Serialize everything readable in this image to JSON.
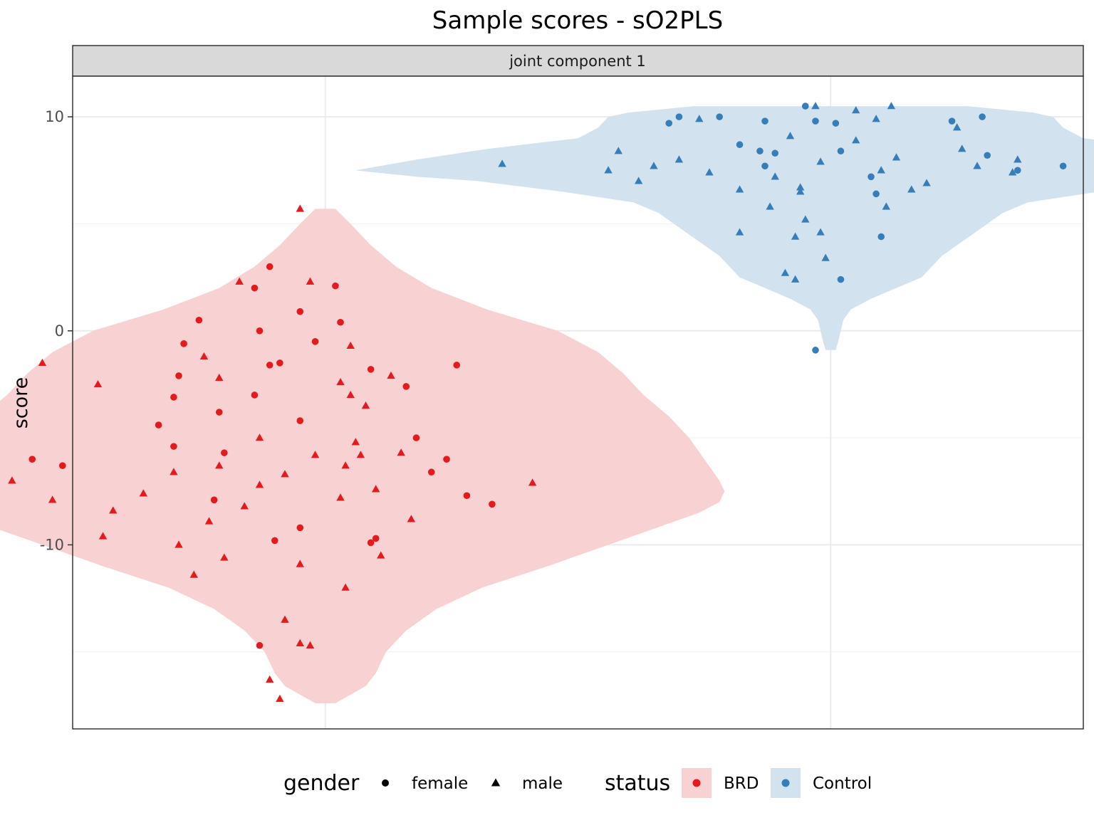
{
  "chart_data": {
    "type": "scatter",
    "title": "Sample scores - sO2PLS",
    "facet_label": "joint component 1",
    "ylabel": "score",
    "xlabel": "",
    "ylim": [
      -18.6,
      11.9
    ],
    "y_ticks": [
      {
        "value": 10,
        "label": "10"
      },
      {
        "value": 0,
        "label": "0"
      },
      {
        "value": -10,
        "label": "-10"
      }
    ],
    "minor_grid_y": [
      5,
      -5,
      -15
    ],
    "grid": true,
    "legend_position": "bottom",
    "legend": {
      "gender": {
        "title": "gender",
        "items": [
          {
            "key": "female",
            "label": "female",
            "shape": "circle"
          },
          {
            "key": "male",
            "label": "male",
            "shape": "triangle"
          }
        ]
      },
      "status": {
        "title": "status",
        "items": [
          {
            "key": "BRD",
            "label": "BRD",
            "color": "#E41A1C",
            "fill": "#F8D1D2"
          },
          {
            "key": "Control",
            "label": "Control",
            "color": "#377EB8",
            "fill": "#D3E2EF"
          }
        ]
      }
    },
    "groups": [
      {
        "status": "BRD",
        "color": "#E41A1C",
        "fill": "#F8D1D2",
        "violin": [
          [
            5.7,
            0.2
          ],
          [
            5.0,
            0.5
          ],
          [
            4.0,
            0.9
          ],
          [
            3.0,
            1.4
          ],
          [
            2.0,
            2.1
          ],
          [
            1.0,
            3.2
          ],
          [
            0.0,
            4.6
          ],
          [
            -1.0,
            5.4
          ],
          [
            -2.0,
            5.9
          ],
          [
            -3.0,
            6.3
          ],
          [
            -4.0,
            6.8
          ],
          [
            -5.0,
            7.2
          ],
          [
            -6.0,
            7.5
          ],
          [
            -7.0,
            7.8
          ],
          [
            -7.5,
            7.9
          ],
          [
            -8.0,
            7.8
          ],
          [
            -8.5,
            7.4
          ],
          [
            -9.0,
            6.8
          ],
          [
            -10.0,
            5.6
          ],
          [
            -11.0,
            4.4
          ],
          [
            -12.0,
            3.1
          ],
          [
            -13.0,
            2.2
          ],
          [
            -14.0,
            1.6
          ],
          [
            -15.0,
            1.2
          ],
          [
            -16.0,
            1.0
          ],
          [
            -16.6,
            0.8
          ],
          [
            -17.0,
            0.5
          ],
          [
            -17.4,
            0.2
          ]
        ],
        "points": [
          {
            "x": -0.05,
            "y": 5.7,
            "gender": "male"
          },
          {
            "x": -0.11,
            "y": 3.0,
            "gender": "female"
          },
          {
            "x": -0.17,
            "y": 2.3,
            "gender": "male"
          },
          {
            "x": -0.03,
            "y": 2.3,
            "gender": "male"
          },
          {
            "x": -0.14,
            "y": 2.0,
            "gender": "female"
          },
          {
            "x": 0.02,
            "y": 2.1,
            "gender": "female"
          },
          {
            "x": -0.05,
            "y": 0.9,
            "gender": "female"
          },
          {
            "x": -0.25,
            "y": 0.5,
            "gender": "female"
          },
          {
            "x": 0.03,
            "y": 0.4,
            "gender": "female"
          },
          {
            "x": -0.13,
            "y": 0.0,
            "gender": "female"
          },
          {
            "x": -0.28,
            "y": -0.6,
            "gender": "female"
          },
          {
            "x": -0.02,
            "y": -0.5,
            "gender": "female"
          },
          {
            "x": 0.05,
            "y": -0.7,
            "gender": "male"
          },
          {
            "x": -0.24,
            "y": -1.2,
            "gender": "male"
          },
          {
            "x": -0.11,
            "y": -1.6,
            "gender": "female"
          },
          {
            "x": -0.09,
            "y": -1.5,
            "gender": "female"
          },
          {
            "x": 0.09,
            "y": -1.8,
            "gender": "female"
          },
          {
            "x": 0.13,
            "y": -2.1,
            "gender": "male"
          },
          {
            "x": -0.56,
            "y": -1.5,
            "gender": "male"
          },
          {
            "x": 0.26,
            "y": -1.6,
            "gender": "female"
          },
          {
            "x": -0.29,
            "y": -2.1,
            "gender": "female"
          },
          {
            "x": -0.21,
            "y": -2.2,
            "gender": "male"
          },
          {
            "x": 0.03,
            "y": -2.4,
            "gender": "male"
          },
          {
            "x": 0.16,
            "y": -2.6,
            "gender": "female"
          },
          {
            "x": -0.45,
            "y": -2.5,
            "gender": "male"
          },
          {
            "x": -0.3,
            "y": -3.1,
            "gender": "female"
          },
          {
            "x": -0.14,
            "y": -3.0,
            "gender": "female"
          },
          {
            "x": 0.05,
            "y": -3.0,
            "gender": "male"
          },
          {
            "x": 0.08,
            "y": -3.5,
            "gender": "male"
          },
          {
            "x": -0.21,
            "y": -3.8,
            "gender": "female"
          },
          {
            "x": -0.05,
            "y": -4.2,
            "gender": "female"
          },
          {
            "x": -0.33,
            "y": -4.4,
            "gender": "female"
          },
          {
            "x": 0.18,
            "y": -5.0,
            "gender": "female"
          },
          {
            "x": -0.13,
            "y": -5.0,
            "gender": "male"
          },
          {
            "x": 0.06,
            "y": -5.2,
            "gender": "male"
          },
          {
            "x": -0.3,
            "y": -5.4,
            "gender": "female"
          },
          {
            "x": -0.2,
            "y": -5.7,
            "gender": "female"
          },
          {
            "x": 0.07,
            "y": -5.8,
            "gender": "male"
          },
          {
            "x": 0.15,
            "y": -5.7,
            "gender": "male"
          },
          {
            "x": -0.02,
            "y": -5.8,
            "gender": "male"
          },
          {
            "x": -0.58,
            "y": -6.0,
            "gender": "female"
          },
          {
            "x": -0.52,
            "y": -6.3,
            "gender": "female"
          },
          {
            "x": 0.24,
            "y": -6.0,
            "gender": "female"
          },
          {
            "x": -0.21,
            "y": -6.3,
            "gender": "male"
          },
          {
            "x": 0.04,
            "y": -6.3,
            "gender": "male"
          },
          {
            "x": -0.3,
            "y": -6.6,
            "gender": "male"
          },
          {
            "x": -0.08,
            "y": -6.7,
            "gender": "male"
          },
          {
            "x": 0.21,
            "y": -6.6,
            "gender": "female"
          },
          {
            "x": -0.62,
            "y": -7.0,
            "gender": "male"
          },
          {
            "x": -0.13,
            "y": -7.2,
            "gender": "male"
          },
          {
            "x": 0.1,
            "y": -7.4,
            "gender": "male"
          },
          {
            "x": 0.41,
            "y": -7.1,
            "gender": "male"
          },
          {
            "x": -0.36,
            "y": -7.6,
            "gender": "male"
          },
          {
            "x": -0.22,
            "y": -7.9,
            "gender": "female"
          },
          {
            "x": 0.03,
            "y": -7.8,
            "gender": "male"
          },
          {
            "x": 0.28,
            "y": -7.7,
            "gender": "female"
          },
          {
            "x": -0.54,
            "y": -7.9,
            "gender": "male"
          },
          {
            "x": -0.16,
            "y": -8.2,
            "gender": "male"
          },
          {
            "x": 0.33,
            "y": -8.1,
            "gender": "female"
          },
          {
            "x": -0.42,
            "y": -8.4,
            "gender": "male"
          },
          {
            "x": 0.17,
            "y": -8.8,
            "gender": "male"
          },
          {
            "x": -0.23,
            "y": -8.9,
            "gender": "male"
          },
          {
            "x": -0.05,
            "y": -9.2,
            "gender": "female"
          },
          {
            "x": -0.44,
            "y": -9.6,
            "gender": "male"
          },
          {
            "x": 0.1,
            "y": -9.7,
            "gender": "female"
          },
          {
            "x": -0.1,
            "y": -9.8,
            "gender": "female"
          },
          {
            "x": -0.29,
            "y": -10.0,
            "gender": "male"
          },
          {
            "x": 0.09,
            "y": -9.9,
            "gender": "female"
          },
          {
            "x": -0.2,
            "y": -10.6,
            "gender": "male"
          },
          {
            "x": 0.11,
            "y": -10.5,
            "gender": "male"
          },
          {
            "x": -0.05,
            "y": -10.9,
            "gender": "male"
          },
          {
            "x": -0.26,
            "y": -11.4,
            "gender": "male"
          },
          {
            "x": 0.04,
            "y": -12.0,
            "gender": "male"
          },
          {
            "x": -0.08,
            "y": -13.5,
            "gender": "male"
          },
          {
            "x": -0.13,
            "y": -14.7,
            "gender": "female"
          },
          {
            "x": -0.05,
            "y": -14.6,
            "gender": "male"
          },
          {
            "x": -0.03,
            "y": -14.7,
            "gender": "male"
          },
          {
            "x": -0.11,
            "y": -16.3,
            "gender": "male"
          },
          {
            "x": -0.09,
            "y": -17.2,
            "gender": "male"
          }
        ]
      },
      {
        "status": "Control",
        "color": "#377EB8",
        "fill": "#D3E2EF",
        "violin": [
          [
            10.5,
            2.7
          ],
          [
            10.2,
            4.0
          ],
          [
            10.0,
            4.4
          ],
          [
            9.5,
            4.6
          ],
          [
            9.0,
            5.0
          ],
          [
            8.5,
            6.8
          ],
          [
            8.0,
            8.2
          ],
          [
            7.5,
            9.4
          ],
          [
            7.2,
            8.2
          ],
          [
            7.0,
            7.0
          ],
          [
            6.5,
            5.3
          ],
          [
            6.0,
            3.9
          ],
          [
            5.5,
            3.4
          ],
          [
            5.0,
            3.1
          ],
          [
            4.5,
            2.8
          ],
          [
            4.0,
            2.5
          ],
          [
            3.5,
            2.2
          ],
          [
            3.0,
            2.0
          ],
          [
            2.5,
            1.8
          ],
          [
            2.0,
            1.3
          ],
          [
            1.5,
            0.8
          ],
          [
            1.0,
            0.4
          ],
          [
            0.5,
            0.25
          ],
          [
            0.0,
            0.2
          ],
          [
            -0.5,
            0.15
          ],
          [
            -0.9,
            0.1
          ]
        ],
        "points": [
          {
            "x": -0.05,
            "y": 10.5,
            "gender": "female"
          },
          {
            "x": -0.03,
            "y": 10.5,
            "gender": "male"
          },
          {
            "x": 0.12,
            "y": 10.5,
            "gender": "male"
          },
          {
            "x": 0.05,
            "y": 10.3,
            "gender": "male"
          },
          {
            "x": -0.22,
            "y": 10.0,
            "gender": "female"
          },
          {
            "x": -0.32,
            "y": 9.7,
            "gender": "female"
          },
          {
            "x": -0.13,
            "y": 9.8,
            "gender": "female"
          },
          {
            "x": -0.03,
            "y": 9.8,
            "gender": "female"
          },
          {
            "x": 0.24,
            "y": 9.8,
            "gender": "female"
          },
          {
            "x": 0.09,
            "y": 9.9,
            "gender": "male"
          },
          {
            "x": 0.3,
            "y": 10.0,
            "gender": "female"
          },
          {
            "x": -0.3,
            "y": 10.0,
            "gender": "female"
          },
          {
            "x": -0.26,
            "y": 9.9,
            "gender": "male"
          },
          {
            "x": 0.01,
            "y": 9.7,
            "gender": "female"
          },
          {
            "x": 0.25,
            "y": 9.5,
            "gender": "male"
          },
          {
            "x": -0.08,
            "y": 9.1,
            "gender": "male"
          },
          {
            "x": 0.05,
            "y": 8.9,
            "gender": "male"
          },
          {
            "x": -0.18,
            "y": 8.7,
            "gender": "female"
          },
          {
            "x": -0.14,
            "y": 8.4,
            "gender": "female"
          },
          {
            "x": 0.02,
            "y": 8.4,
            "gender": "female"
          },
          {
            "x": 0.26,
            "y": 8.5,
            "gender": "male"
          },
          {
            "x": -0.42,
            "y": 8.4,
            "gender": "male"
          },
          {
            "x": -0.3,
            "y": 8.0,
            "gender": "male"
          },
          {
            "x": -0.11,
            "y": 8.3,
            "gender": "female"
          },
          {
            "x": 0.13,
            "y": 8.1,
            "gender": "male"
          },
          {
            "x": 0.31,
            "y": 8.2,
            "gender": "female"
          },
          {
            "x": 0.37,
            "y": 8.0,
            "gender": "male"
          },
          {
            "x": -0.65,
            "y": 7.8,
            "gender": "male"
          },
          {
            "x": -0.35,
            "y": 7.7,
            "gender": "male"
          },
          {
            "x": -0.13,
            "y": 7.7,
            "gender": "female"
          },
          {
            "x": -0.02,
            "y": 7.9,
            "gender": "male"
          },
          {
            "x": 0.1,
            "y": 7.5,
            "gender": "male"
          },
          {
            "x": 0.29,
            "y": 7.7,
            "gender": "male"
          },
          {
            "x": 0.46,
            "y": 7.7,
            "gender": "female"
          },
          {
            "x": -0.24,
            "y": 7.4,
            "gender": "male"
          },
          {
            "x": -0.11,
            "y": 7.2,
            "gender": "male"
          },
          {
            "x": 0.08,
            "y": 7.2,
            "gender": "female"
          },
          {
            "x": 0.36,
            "y": 7.4,
            "gender": "male"
          },
          {
            "x": 0.19,
            "y": 6.9,
            "gender": "male"
          },
          {
            "x": -0.06,
            "y": 6.7,
            "gender": "male"
          },
          {
            "x": -0.38,
            "y": 7.0,
            "gender": "male"
          },
          {
            "x": -0.44,
            "y": 7.5,
            "gender": "male"
          },
          {
            "x": 0.37,
            "y": 7.5,
            "gender": "female"
          },
          {
            "x": 0.09,
            "y": 6.4,
            "gender": "female"
          },
          {
            "x": 0.16,
            "y": 6.6,
            "gender": "male"
          },
          {
            "x": -0.18,
            "y": 6.6,
            "gender": "male"
          },
          {
            "x": -0.06,
            "y": 6.5,
            "gender": "male"
          },
          {
            "x": -0.12,
            "y": 5.8,
            "gender": "male"
          },
          {
            "x": -0.05,
            "y": 5.2,
            "gender": "male"
          },
          {
            "x": 0.11,
            "y": 5.8,
            "gender": "male"
          },
          {
            "x": -0.18,
            "y": 4.6,
            "gender": "male"
          },
          {
            "x": -0.02,
            "y": 4.6,
            "gender": "male"
          },
          {
            "x": 0.1,
            "y": 4.4,
            "gender": "female"
          },
          {
            "x": -0.07,
            "y": 4.4,
            "gender": "male"
          },
          {
            "x": -0.01,
            "y": 3.4,
            "gender": "male"
          },
          {
            "x": -0.09,
            "y": 2.7,
            "gender": "male"
          },
          {
            "x": -0.07,
            "y": 2.4,
            "gender": "male"
          },
          {
            "x": 0.02,
            "y": 2.4,
            "gender": "female"
          },
          {
            "x": -0.03,
            "y": -0.9,
            "gender": "female"
          }
        ]
      }
    ]
  }
}
